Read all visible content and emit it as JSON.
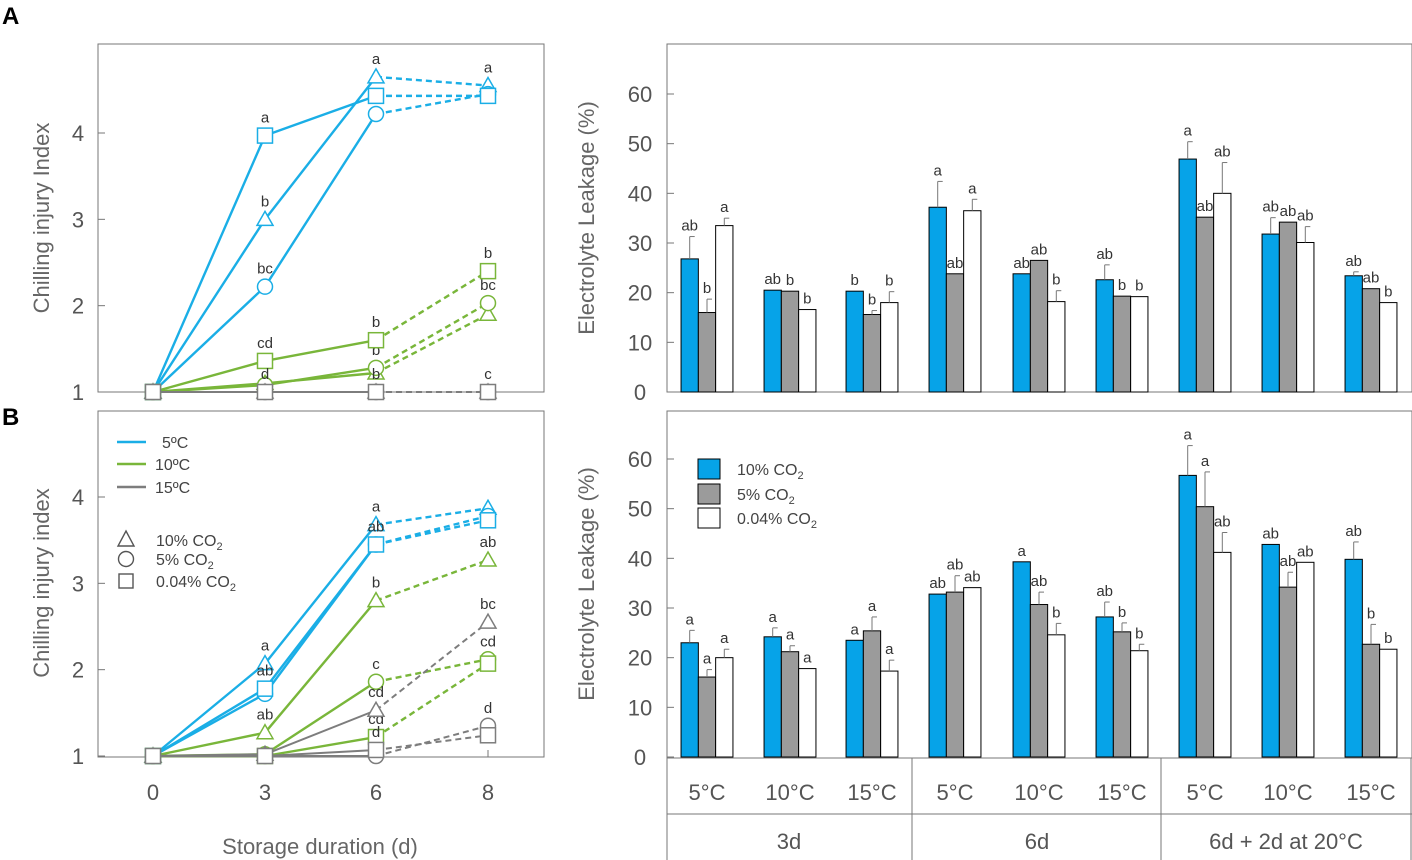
{
  "panel_labels": {
    "a": "A",
    "b": "B"
  },
  "colors": {
    "c5": "#1aaee6",
    "c10": "#79b63a",
    "c15": "#7d7d7d",
    "c15light": "#9a9a9a",
    "bar_co2_10": "#06a3e8",
    "bar_co2_5": "#9b9b9b",
    "bar_co2_004": "#ffffff"
  },
  "xaxis": {
    "days_title": "Storage duration (d)",
    "temps": [
      "5°C",
      "10°C",
      "15°C",
      "5°C",
      "10°C",
      "15°C",
      "5°C",
      "10°C",
      "15°C"
    ],
    "groups": [
      "3d",
      "6d",
      "6d + 2d at 20°C"
    ]
  },
  "legend": {
    "temps": [
      "5ºC",
      "10ºC",
      "15ºC"
    ],
    "co2_markers": [
      "10% CO",
      "5% CO",
      "0.04% CO"
    ],
    "co2_sub": "2",
    "bars": [
      "10% CO",
      "5% CO",
      "0.04% CO"
    ]
  },
  "chart_data": [
    {
      "id": "A-left",
      "type": "line",
      "ylabel": "Chilling injury Index",
      "xlabel": "Storage duration (d)",
      "xlim": [
        0,
        8
      ],
      "ylim": [
        1,
        4.9
      ],
      "yticks": [
        1,
        2,
        3,
        4
      ],
      "yticklabels": [
        "1",
        "2",
        "3",
        "4"
      ],
      "xticks": [
        0,
        3,
        6,
        8
      ],
      "series": [
        {
          "name": "5°C 10% CO2",
          "temp": "5",
          "marker": "triangle",
          "x": [
            0,
            3,
            6,
            8
          ],
          "y": [
            1.0,
            3.0,
            4.65,
            4.55
          ],
          "labels": [
            "",
            "b",
            "a",
            "a"
          ]
        },
        {
          "name": "5°C 5% CO2",
          "temp": "5",
          "marker": "circle",
          "x": [
            0,
            3,
            6,
            8
          ],
          "y": [
            1.0,
            2.22,
            4.22,
            4.45
          ],
          "labels": [
            "",
            "bc",
            "a",
            ""
          ]
        },
        {
          "name": "5°C 0.04% CO2",
          "temp": "5",
          "marker": "square",
          "x": [
            0,
            3,
            6,
            8
          ],
          "y": [
            1.0,
            3.97,
            4.43,
            4.43
          ],
          "labels": [
            "",
            "a",
            "",
            ""
          ]
        },
        {
          "name": "10°C 10% CO2",
          "temp": "10",
          "marker": "triangle",
          "x": [
            0,
            3,
            6,
            8
          ],
          "y": [
            1.0,
            1.1,
            1.22,
            1.9
          ],
          "labels": [
            "",
            "",
            "",
            ""
          ]
        },
        {
          "name": "10°C 5% CO2",
          "temp": "10",
          "marker": "circle",
          "x": [
            0,
            3,
            6,
            8
          ],
          "y": [
            1.0,
            1.08,
            1.28,
            2.03
          ],
          "labels": [
            "",
            "",
            "b",
            "bc"
          ]
        },
        {
          "name": "10°C 0.04% CO2",
          "temp": "10",
          "marker": "square",
          "x": [
            0,
            3,
            6,
            8
          ],
          "y": [
            1.0,
            1.36,
            1.6,
            2.4
          ],
          "labels": [
            "",
            "cd",
            "b",
            "b"
          ]
        },
        {
          "name": "15°C 10% CO2",
          "temp": "15",
          "marker": "triangle",
          "x": [
            0,
            3,
            6,
            8
          ],
          "y": [
            1.0,
            1.0,
            1.0,
            1.0
          ],
          "labels": [
            "",
            "",
            "",
            ""
          ]
        },
        {
          "name": "15°C 5% CO2",
          "temp": "15",
          "marker": "circle",
          "x": [
            0,
            3,
            6,
            8
          ],
          "y": [
            1.0,
            1.0,
            1.0,
            1.0
          ],
          "labels": [
            "",
            "",
            "",
            ""
          ]
        },
        {
          "name": "15°C 0.04% CO2",
          "temp": "15",
          "marker": "square",
          "x": [
            0,
            3,
            6,
            8
          ],
          "y": [
            1.0,
            1.0,
            1.0,
            1.0
          ],
          "labels": [
            "",
            "d",
            "b",
            "c"
          ]
        }
      ]
    },
    {
      "id": "A-right",
      "type": "bar",
      "ylabel": "Electrolyte Leakage (%)",
      "ylim": [
        0,
        69
      ],
      "yticks": [
        0,
        10,
        20,
        30,
        40,
        50,
        60
      ],
      "categories": [
        "5°C 3d",
        "10°C 3d",
        "15°C 3d",
        "5°C 6d",
        "10°C 6d",
        "15°C 6d",
        "5°C 6d+2d",
        "10°C 6d+2d",
        "15°C 6d+2d"
      ],
      "series": [
        {
          "name": "10% CO2",
          "values": [
            26.8,
            20.5,
            20.3,
            37.2,
            23.8,
            22.6,
            46.9,
            31.8,
            23.4
          ],
          "errors": [
            4.5,
            0,
            0,
            5.2,
            0,
            3.0,
            3.5,
            3.3,
            0.8
          ],
          "labels": [
            "ab",
            "ab",
            "b",
            "a",
            "ab",
            "ab",
            "a",
            "ab",
            "ab"
          ]
        },
        {
          "name": "5% CO2",
          "values": [
            16.0,
            20.3,
            15.6,
            23.8,
            26.5,
            19.3,
            35.2,
            34.2,
            20.8
          ],
          "errors": [
            2.7,
            0,
            0.8,
            0,
            0,
            0,
            0,
            0,
            0
          ],
          "labels": [
            "b",
            "b",
            "b",
            "ab",
            "ab",
            "b",
            "ab",
            "ab",
            "ab"
          ]
        },
        {
          "name": "0.04% CO2",
          "values": [
            33.5,
            16.6,
            18.0,
            36.5,
            18.2,
            19.2,
            40.0,
            30.1,
            18.0
          ],
          "errors": [
            1.5,
            0,
            2.2,
            2.3,
            2.2,
            0,
            6.2,
            3.2,
            0
          ],
          "labels": [
            "a",
            "b",
            "b",
            "a",
            "b",
            "b",
            "ab",
            "ab",
            "b"
          ]
        }
      ]
    },
    {
      "id": "B-left",
      "type": "line",
      "ylabel": "Chilling injury index",
      "xlabel": "Storage duration (d)",
      "xlim": [
        0,
        8
      ],
      "ylim": [
        1,
        4.9
      ],
      "yticks": [
        1,
        2,
        3,
        4
      ],
      "yticklabels": [
        "1",
        "2",
        "3",
        "4"
      ],
      "xticks": [
        0,
        3,
        6,
        8
      ],
      "xticklabels": [
        "0",
        "3",
        "6",
        "8"
      ],
      "series": [
        {
          "name": "5°C 10% CO2",
          "temp": "5",
          "marker": "triangle",
          "x": [
            0,
            3,
            6,
            8
          ],
          "y": [
            1.0,
            2.07,
            3.68,
            3.87
          ],
          "labels": [
            "",
            "a",
            "a",
            ""
          ]
        },
        {
          "name": "5°C 5% CO2",
          "temp": "5",
          "marker": "circle",
          "x": [
            0,
            3,
            6,
            8
          ],
          "y": [
            1.0,
            1.72,
            3.45,
            3.78
          ],
          "labels": [
            "",
            "",
            "",
            ""
          ]
        },
        {
          "name": "5°C 0.04% CO2",
          "temp": "5",
          "marker": "square",
          "x": [
            0,
            3,
            6,
            8
          ],
          "y": [
            1.0,
            1.78,
            3.45,
            3.73
          ],
          "labels": [
            "",
            "ab",
            "ab",
            ""
          ]
        },
        {
          "name": "10°C 10% CO2",
          "temp": "10",
          "marker": "triangle",
          "x": [
            0,
            3,
            6,
            8
          ],
          "y": [
            1.0,
            1.27,
            2.8,
            3.27
          ],
          "labels": [
            "",
            "ab",
            "b",
            "ab"
          ]
        },
        {
          "name": "10°C 5% CO2",
          "temp": "10",
          "marker": "circle",
          "x": [
            0,
            3,
            6,
            8
          ],
          "y": [
            1.0,
            1.02,
            1.86,
            2.12
          ],
          "labels": [
            "",
            "",
            "c",
            "cd"
          ]
        },
        {
          "name": "10°C 0.04% CO2",
          "temp": "10",
          "marker": "square",
          "x": [
            0,
            3,
            6,
            8
          ],
          "y": [
            1.0,
            1.0,
            1.22,
            2.07
          ],
          "labels": [
            "",
            "",
            "cd",
            ""
          ]
        },
        {
          "name": "15°C 10% CO2",
          "temp": "15",
          "marker": "triangle",
          "x": [
            0,
            3,
            6,
            8
          ],
          "y": [
            1.0,
            1.02,
            1.53,
            2.55
          ],
          "labels": [
            "",
            "",
            "cd",
            "bc"
          ]
        },
        {
          "name": "15°C 5% CO2",
          "temp": "15",
          "marker": "circle",
          "x": [
            0,
            3,
            6,
            8
          ],
          "y": [
            1.0,
            1.0,
            1.0,
            1.35
          ],
          "labels": [
            "",
            "",
            "",
            "d"
          ]
        },
        {
          "name": "15°C 0.04% CO2",
          "temp": "15",
          "marker": "square",
          "x": [
            0,
            3,
            6,
            8
          ],
          "y": [
            1.0,
            1.0,
            1.07,
            1.24
          ],
          "labels": [
            "",
            "",
            "d",
            ""
          ]
        }
      ]
    },
    {
      "id": "B-right",
      "type": "bar",
      "ylabel": "Electrolyte Leakage (%)",
      "ylim": [
        0,
        69
      ],
      "yticks": [
        0,
        10,
        20,
        30,
        40,
        50,
        60
      ],
      "categories": [
        "5°C 3d",
        "10°C 3d",
        "15°C 3d",
        "5°C 6d",
        "10°C 6d",
        "15°C 6d",
        "5°C 6d+2d",
        "10°C 6d+2d",
        "15°C 6d+2d"
      ],
      "series": [
        {
          "name": "10% CO2",
          "values": [
            23.0,
            24.2,
            23.5,
            32.8,
            39.3,
            28.2,
            56.7,
            42.8,
            39.8
          ],
          "errors": [
            2.5,
            1.8,
            0,
            0,
            0,
            3.0,
            6.0,
            0,
            3.5
          ],
          "labels": [
            "a",
            "a",
            "a",
            "ab",
            "a",
            "ab",
            "a",
            "ab",
            "ab"
          ]
        },
        {
          "name": "5% CO2",
          "values": [
            16.1,
            21.2,
            25.4,
            33.2,
            30.7,
            25.2,
            50.4,
            34.2,
            22.7
          ],
          "errors": [
            1.5,
            1.2,
            2.8,
            3.3,
            2.5,
            1.8,
            7.0,
            3.0,
            4.0
          ],
          "labels": [
            "a",
            "a",
            "a",
            "ab",
            "ab",
            "b",
            "a",
            "ab",
            "b"
          ]
        },
        {
          "name": "0.04% CO2",
          "values": [
            20.0,
            17.8,
            17.3,
            34.1,
            24.6,
            21.4,
            41.2,
            39.2,
            21.7
          ],
          "errors": [
            1.7,
            0,
            2.2,
            0,
            2.3,
            1.3,
            4.0,
            0,
            0
          ],
          "labels": [
            "a",
            "a",
            "a",
            "ab",
            "b",
            "b",
            "ab",
            "ab",
            "b"
          ]
        }
      ]
    }
  ]
}
